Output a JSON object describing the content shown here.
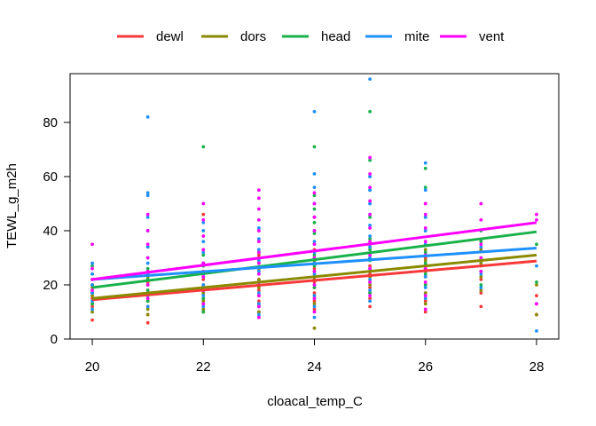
{
  "chart_data": {
    "type": "scatter",
    "title": "",
    "xlabel": "cloacal_temp_C",
    "ylabel": "TEWL_g_m2h",
    "xlim": [
      19.6,
      28.4
    ],
    "ylim": [
      0,
      98
    ],
    "x_ticks": [
      20,
      22,
      24,
      26,
      28
    ],
    "y_ticks": [
      0,
      20,
      40,
      60,
      80
    ],
    "grid": false,
    "legend_position": "top",
    "series": [
      {
        "name": "dewl",
        "color": "#F8393A",
        "fit": {
          "x": [
            20,
            28
          ],
          "y": [
            14.5,
            28.8
          ]
        },
        "points": [
          {
            "x": 20,
            "y": [
              7,
              12,
              15,
              17,
              20
            ]
          },
          {
            "x": 21,
            "y": [
              6,
              9,
              12,
              14,
              16,
              18,
              21,
              24
            ]
          },
          {
            "x": 22,
            "y": [
              10,
              13,
              15,
              17,
              19,
              22,
              25,
              28,
              46
            ]
          },
          {
            "x": 23,
            "y": [
              8,
              10,
              12,
              14,
              16,
              18,
              20,
              22,
              25,
              28,
              31
            ]
          },
          {
            "x": 24,
            "y": [
              11,
              14,
              17,
              19,
              21,
              23,
              26,
              29,
              33
            ]
          },
          {
            "x": 25,
            "y": [
              12,
              15,
              17,
              19,
              21,
              24,
              27,
              30,
              35
            ]
          },
          {
            "x": 26,
            "y": [
              10,
              14,
              17,
              20,
              23,
              26,
              30
            ]
          },
          {
            "x": 27,
            "y": [
              12,
              17,
              22,
              27
            ]
          },
          {
            "x": 28,
            "y": [
              9,
              13,
              16
            ]
          }
        ]
      },
      {
        "name": "dors",
        "color": "#8A8A00",
        "fit": {
          "x": [
            20,
            28
          ],
          "y": [
            15.0,
            31.0
          ]
        },
        "points": [
          {
            "x": 20,
            "y": [
              10,
              13,
              16,
              19,
              22
            ]
          },
          {
            "x": 21,
            "y": [
              9,
              11,
              14,
              17,
              20,
              23
            ]
          },
          {
            "x": 22,
            "y": [
              11,
              14,
              17,
              20,
              23,
              27
            ]
          },
          {
            "x": 23,
            "y": [
              10,
              13,
              16,
              19,
              22,
              26,
              30
            ]
          },
          {
            "x": 24,
            "y": [
              4,
              13,
              16,
              19,
              22,
              25,
              29
            ]
          },
          {
            "x": 25,
            "y": [
              14,
              17,
              20,
              23,
              26,
              30,
              34
            ]
          },
          {
            "x": 26,
            "y": [
              13,
              17,
              21,
              25,
              29,
              33
            ]
          },
          {
            "x": 27,
            "y": [
              18,
              23,
              28,
              33
            ]
          },
          {
            "x": 28,
            "y": [
              9,
              20
            ]
          }
        ]
      },
      {
        "name": "head",
        "color": "#19B24A",
        "fit": {
          "x": [
            20,
            28
          ],
          "y": [
            19.0,
            39.6
          ]
        },
        "points": [
          {
            "x": 20,
            "y": [
              13,
              17,
              20,
              24,
              27
            ]
          },
          {
            "x": 21,
            "y": [
              14,
              18,
              22,
              26,
              30,
              34
            ]
          },
          {
            "x": 22,
            "y": [
              10,
              15,
              19,
              23,
              27,
              31,
              71
            ]
          },
          {
            "x": 23,
            "y": [
              12,
              16,
              20,
              24,
              28,
              32,
              36,
              40,
              44
            ]
          },
          {
            "x": 24,
            "y": [
              15,
              19,
              23,
              27,
              31,
              35,
              39,
              43,
              48,
              53,
              71
            ]
          },
          {
            "x": 25,
            "y": [
              17,
              21,
              25,
              29,
              33,
              37,
              41,
              45,
              50,
              55,
              60,
              66,
              84
            ]
          },
          {
            "x": 26,
            "y": [
              16,
              20,
              24,
              28,
              32,
              36,
              40,
              45,
              50,
              56,
              63
            ]
          },
          {
            "x": 27,
            "y": [
              20,
              25,
              30,
              36,
              40
            ]
          },
          {
            "x": 28,
            "y": [
              21,
              35
            ]
          }
        ]
      },
      {
        "name": "mite",
        "color": "#1E90FF",
        "fit": {
          "x": [
            20,
            28
          ],
          "y": [
            22.0,
            33.6
          ]
        },
        "points": [
          {
            "x": 20,
            "y": [
              11,
              14,
              17,
              20,
              24,
              28
            ]
          },
          {
            "x": 21,
            "y": [
              12,
              16,
              20,
              24,
              28,
              34,
              40,
              45,
              53,
              54,
              82
            ]
          },
          {
            "x": 22,
            "y": [
              12,
              16,
              20,
              24,
              28,
              32,
              36,
              40,
              43
            ]
          },
          {
            "x": 23,
            "y": [
              9,
              13,
              17,
              21,
              25,
              29,
              33,
              37,
              41
            ]
          },
          {
            "x": 24,
            "y": [
              8,
              12,
              16,
              20,
              24,
              28,
              32,
              36,
              40,
              45,
              50,
              56,
              61,
              84
            ]
          },
          {
            "x": 25,
            "y": [
              14,
              18,
              22,
              26,
              30,
              34,
              38,
              42,
              46,
              50,
              55,
              60,
              96
            ]
          },
          {
            "x": 26,
            "y": [
              15,
              19,
              23,
              27,
              31,
              35,
              40,
              45,
              55,
              65
            ]
          },
          {
            "x": 27,
            "y": [
              19,
              24,
              29,
              34
            ]
          },
          {
            "x": 28,
            "y": [
              3,
              27
            ]
          }
        ]
      },
      {
        "name": "vent",
        "color": "#FF00FF",
        "fit": {
          "x": [
            20,
            28
          ],
          "y": [
            22.0,
            43.0
          ]
        },
        "points": [
          {
            "x": 20,
            "y": [
              18,
              22,
              26,
              35
            ]
          },
          {
            "x": 21,
            "y": [
              15,
              20,
              25,
              30,
              35,
              40,
              46
            ]
          },
          {
            "x": 22,
            "y": [
              13,
              18,
              23,
              28,
              33,
              38,
              44,
              50
            ]
          },
          {
            "x": 23,
            "y": [
              8,
              12,
              16,
              20,
              24,
              28,
              32,
              36,
              40,
              44,
              48,
              52,
              55
            ]
          },
          {
            "x": 24,
            "y": [
              10,
              15,
              20,
              25,
              30,
              35,
              40,
              45,
              50,
              54
            ]
          },
          {
            "x": 25,
            "y": [
              16,
              21,
              26,
              31,
              36,
              41,
              46,
              51,
              56,
              61,
              67
            ]
          },
          {
            "x": 26,
            "y": [
              11,
              16,
              21,
              26,
              31,
              36,
              41,
              46,
              50
            ]
          },
          {
            "x": 27,
            "y": [
              25,
              30,
              35,
              44,
              50
            ]
          },
          {
            "x": 28,
            "y": [
              13,
              44,
              46
            ]
          }
        ]
      }
    ]
  }
}
